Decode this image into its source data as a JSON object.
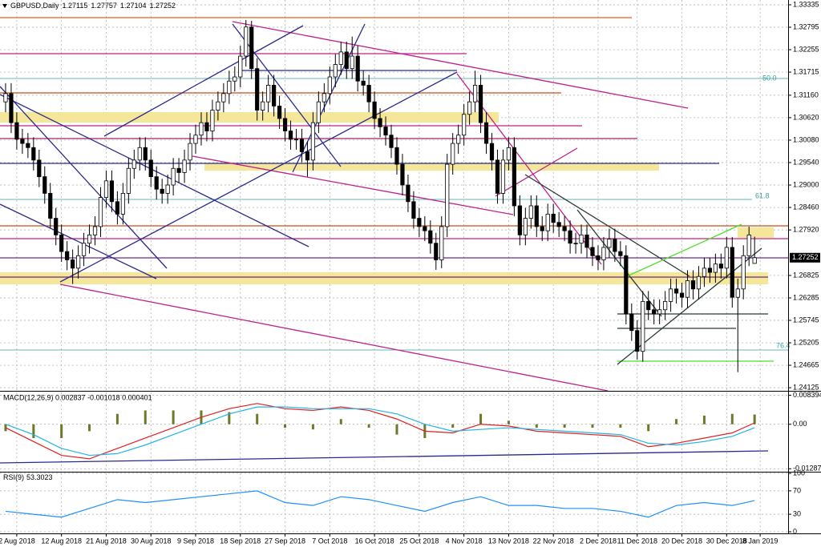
{
  "chart_data": [
    {
      "type": "candlestick",
      "title": "GBPUSD,Daily",
      "open": [
        1.31,
        1.312,
        1.305,
        1.301,
        1.3,
        1.299,
        1.296,
        1.292,
        1.288,
        1.282,
        1.278,
        1.274,
        1.272,
        1.27,
        1.273,
        1.276,
        1.278,
        1.28,
        1.287,
        1.291,
        1.286,
        1.283,
        1.288,
        1.294,
        1.296,
        1.299,
        1.296,
        1.292,
        1.289,
        1.288,
        1.29,
        1.294,
        1.293,
        1.296,
        1.3,
        1.302,
        1.305,
        1.303,
        1.308,
        1.31,
        1.312,
        1.315,
        1.316,
        1.321,
        1.328,
        1.318,
        1.308,
        1.31,
        1.314,
        1.309,
        1.306,
        1.303,
        1.301,
        1.301,
        1.298,
        1.296,
        1.305,
        1.31,
        1.312,
        1.316,
        1.319,
        1.322,
        1.318,
        1.321,
        1.315,
        1.314,
        1.31,
        1.306,
        1.304,
        1.302,
        1.299,
        1.295,
        1.29,
        1.286,
        1.282,
        1.28,
        1.279,
        1.276,
        1.272,
        1.28,
        1.295,
        1.3,
        1.302,
        1.307,
        1.31,
        1.314,
        1.305,
        1.3,
        1.296,
        1.288,
        1.296,
        1.299,
        1.285,
        1.278,
        1.282,
        1.285,
        1.28,
        1.279,
        1.283,
        1.281,
        1.28,
        1.279,
        1.276,
        1.276,
        1.278,
        1.275,
        1.273,
        1.272,
        1.275,
        1.277,
        1.274,
        1.273,
        1.259,
        1.255,
        1.25,
        1.262,
        1.26,
        1.259,
        1.26,
        1.262,
        1.265,
        1.264,
        1.263,
        1.267,
        1.265,
        1.268,
        1.27,
        1.269,
        1.271,
        1.27,
        1.275,
        1.263,
        1.265,
        1.273,
        1.27115
      ],
      "high": [
        1.3145,
        1.3145,
        1.3075,
        1.3035,
        1.3025,
        1.3015,
        1.2985,
        1.2945,
        1.2905,
        1.2845,
        1.2805,
        1.2765,
        1.2745,
        1.2755,
        1.2785,
        1.2805,
        1.2825,
        1.2895,
        1.2935,
        1.2935,
        1.2885,
        1.2905,
        1.2965,
        1.2985,
        1.3015,
        1.3015,
        1.2985,
        1.2945,
        1.2915,
        1.2925,
        1.2965,
        1.2965,
        1.2985,
        1.3025,
        1.3045,
        1.3075,
        1.3075,
        1.3105,
        1.3125,
        1.3145,
        1.3175,
        1.3185,
        1.3235,
        1.3297,
        1.3295,
        1.3205,
        1.3125,
        1.3165,
        1.3165,
        1.3115,
        1.3085,
        1.3055,
        1.3035,
        1.3035,
        1.3005,
        1.3075,
        1.3125,
        1.3145,
        1.3185,
        1.3215,
        1.3245,
        1.3245,
        1.3257,
        1.3235,
        1.3175,
        1.3165,
        1.3125,
        1.3085,
        1.3065,
        1.3045,
        1.3015,
        1.2975,
        1.2925,
        1.2885,
        1.2845,
        1.2825,
        1.2815,
        1.2785,
        1.2825,
        1.2975,
        1.3025,
        1.3045,
        1.3095,
        1.3125,
        1.3175,
        1.3165,
        1.3075,
        1.3025,
        1.2985,
        1.2985,
        1.3015,
        1.3015,
        1.2875,
        1.2845,
        1.2875,
        1.2875,
        1.2825,
        1.2855,
        1.2855,
        1.2835,
        1.2825,
        1.2815,
        1.2785,
        1.2805,
        1.2805,
        1.2775,
        1.2755,
        1.2775,
        1.2795,
        1.2795,
        1.2765,
        1.2755,
        1.2615,
        1.2575,
        1.2645,
        1.2645,
        1.2625,
        1.2625,
        1.2645,
        1.2675,
        1.2675,
        1.2665,
        1.2695,
        1.2695,
        1.2705,
        1.2725,
        1.2725,
        1.2735,
        1.2735,
        1.2775,
        1.2775,
        1.2675,
        1.2755,
        1.28,
        1.27757
      ],
      "low": [
        1.3075,
        1.3025,
        1.2985,
        1.2975,
        1.2965,
        1.2935,
        1.2895,
        1.2855,
        1.2795,
        1.2755,
        1.2715,
        1.2695,
        1.2662,
        1.2675,
        1.2705,
        1.2735,
        1.2755,
        1.2775,
        1.2845,
        1.2835,
        1.2805,
        1.2805,
        1.2855,
        1.2915,
        1.2935,
        1.2935,
        1.2895,
        1.2865,
        1.2855,
        1.2855,
        1.2875,
        1.2905,
        1.2905,
        1.2935,
        1.2975,
        1.2995,
        1.3005,
        1.3005,
        1.3055,
        1.3075,
        1.3095,
        1.3125,
        1.3135,
        1.3185,
        1.3155,
        1.3055,
        1.3055,
        1.3075,
        1.3065,
        1.3035,
        1.3005,
        1.2985,
        1.2985,
        1.2955,
        1.292,
        1.2935,
        1.3025,
        1.3075,
        1.3095,
        1.3135,
        1.3165,
        1.3155,
        1.3155,
        1.3125,
        1.3115,
        1.3075,
        1.3035,
        1.3015,
        1.2995,
        1.2965,
        1.2925,
        1.2875,
        1.2835,
        1.2795,
        1.2775,
        1.2765,
        1.2735,
        1.2696,
        1.27,
        1.2775,
        1.2925,
        1.2975,
        1.2995,
        1.3045,
        1.3075,
        1.3025,
        1.2975,
        1.2935,
        1.2855,
        1.2855,
        1.2935,
        1.2825,
        1.2755,
        1.2755,
        1.2795,
        1.2775,
        1.2765,
        1.2765,
        1.2785,
        1.2775,
        1.2765,
        1.2735,
        1.2735,
        1.2735,
        1.2725,
        1.2705,
        1.2695,
        1.2695,
        1.2725,
        1.2715,
        1.2705,
        1.2565,
        1.2525,
        1.248,
        1.2475,
        1.2575,
        1.2565,
        1.2565,
        1.2575,
        1.2595,
        1.2615,
        1.2605,
        1.2605,
        1.2625,
        1.2625,
        1.2655,
        1.2665,
        1.2665,
        1.2675,
        1.2675,
        1.2605,
        1.245,
        1.2625,
        1.2705,
        1.27104
      ],
      "close": [
        1.312,
        1.305,
        1.301,
        1.3,
        1.299,
        1.296,
        1.292,
        1.288,
        1.282,
        1.278,
        1.274,
        1.272,
        1.27,
        1.273,
        1.276,
        1.278,
        1.28,
        1.287,
        1.291,
        1.286,
        1.283,
        1.288,
        1.294,
        1.296,
        1.299,
        1.296,
        1.292,
        1.289,
        1.288,
        1.29,
        1.294,
        1.293,
        1.296,
        1.3,
        1.302,
        1.305,
        1.303,
        1.308,
        1.31,
        1.312,
        1.315,
        1.316,
        1.321,
        1.328,
        1.318,
        1.308,
        1.31,
        1.314,
        1.309,
        1.306,
        1.303,
        1.301,
        1.301,
        1.298,
        1.296,
        1.305,
        1.31,
        1.312,
        1.316,
        1.319,
        1.322,
        1.318,
        1.321,
        1.315,
        1.314,
        1.31,
        1.306,
        1.304,
        1.302,
        1.299,
        1.295,
        1.29,
        1.286,
        1.282,
        1.28,
        1.279,
        1.276,
        1.272,
        1.28,
        1.295,
        1.3,
        1.302,
        1.307,
        1.31,
        1.314,
        1.305,
        1.3,
        1.296,
        1.288,
        1.296,
        1.299,
        1.285,
        1.278,
        1.282,
        1.285,
        1.28,
        1.279,
        1.283,
        1.281,
        1.28,
        1.279,
        1.276,
        1.276,
        1.278,
        1.275,
        1.273,
        1.272,
        1.275,
        1.277,
        1.274,
        1.273,
        1.259,
        1.255,
        1.25,
        1.262,
        1.26,
        1.259,
        1.26,
        1.262,
        1.265,
        1.264,
        1.263,
        1.267,
        1.265,
        1.268,
        1.27,
        1.269,
        1.271,
        1.27,
        1.275,
        1.263,
        1.265,
        1.273,
        1.278,
        1.27252
      ],
      "up_color": "#ffffff",
      "down_color": "#000000",
      "xlim": [
        -1,
        140
      ],
      "xticks": [
        {
          "value": 2,
          "label": "2 Aug 2018"
        },
        {
          "value": 10,
          "label": "12 Aug 2018"
        },
        {
          "value": 18,
          "label": "21 Aug 2018"
        },
        {
          "value": 26,
          "label": "30 Aug 2018"
        },
        {
          "value": 34,
          "label": "9 Sep 2018"
        },
        {
          "value": 42,
          "label": "18 Sep 2018"
        },
        {
          "value": 50,
          "label": "27 Sep 2018"
        },
        {
          "value": 58,
          "label": "7 Oct 2018"
        },
        {
          "value": 66,
          "label": "16 Oct 2018"
        },
        {
          "value": 74,
          "label": "25 Oct 2018"
        },
        {
          "value": 82,
          "label": "4 Nov 2018"
        },
        {
          "value": 90,
          "label": "13 Nov 2018"
        },
        {
          "value": 98,
          "label": "22 Nov 2018"
        },
        {
          "value": 106,
          "label": "2 Dec 2018"
        },
        {
          "value": 113,
          "label": "11 Dec 2018"
        },
        {
          "value": 121,
          "label": "20 Dec 2018"
        },
        {
          "value": 129,
          "label": "30 Dec 2018"
        },
        {
          "value": 135,
          "label": "8 Jan 2019"
        }
      ],
      "ylim": [
        1.2405,
        1.3345
      ],
      "yticks": [
        1.33335,
        1.32795,
        1.32255,
        1.31715,
        {
          "value": 1.3116,
          "label": "1.31160"
        },
        {
          "value": 1.3062,
          "label": "1.30620"
        },
        {
          "value": 1.3008,
          "label": "1.30080"
        },
        {
          "value": 1.2954,
          "label": "1.29540"
        },
        {
          "value": 1.29,
          "label": "1.29000"
        },
        {
          "value": 1.2846,
          "label": "1.28460"
        },
        {
          "value": 1.2792,
          "label": "1.27920"
        },
        1.26825,
        1.26285,
        1.25745,
        1.25205,
        1.24665,
        1.24125
      ],
      "grid": true,
      "annotations": [
        "50.0",
        "61.8",
        "76.4"
      ]
    },
    {
      "type": "macd",
      "title": "MACD(12,26,9) 0.002837 -0.001018 0.000401",
      "x": [
        0,
        5,
        10,
        15,
        20,
        25,
        30,
        35,
        40,
        45,
        50,
        55,
        60,
        65,
        70,
        75,
        80,
        85,
        90,
        95,
        100,
        105,
        110,
        115,
        120,
        125,
        130,
        134
      ],
      "bars": [
        -0.002,
        -0.004,
        -0.004,
        -0.002,
        0.003,
        0.004,
        0.004,
        0.004,
        0.0035,
        0.003,
        -0.001,
        -0.0015,
        0.0015,
        -0.001,
        -0.003,
        -0.004,
        -0.001,
        0.003,
        0.001,
        -0.001,
        -0.001,
        -0.001,
        -0.001,
        -0.002,
        0.0015,
        0.0025,
        0.003,
        0.0028
      ],
      "bar_color": "#6b7a2a",
      "series": [
        {
          "color": "#e02020",
          "values": [
            -0.001,
            -0.005,
            -0.009,
            -0.01,
            -0.007,
            -0.004,
            -0.001,
            0.002,
            0.0045,
            0.006,
            0.0045,
            0.004,
            0.005,
            0.004,
            0.0015,
            -0.002,
            -0.0025,
            0.0,
            -0.0005,
            -0.002,
            -0.0025,
            -0.003,
            -0.0035,
            -0.0065,
            -0.0055,
            -0.004,
            -0.0025,
            0.0004
          ]
        },
        {
          "color": "#22b4e6",
          "values": [
            0.0,
            -0.003,
            -0.007,
            -0.009,
            -0.0085,
            -0.006,
            -0.003,
            0.0,
            0.003,
            0.005,
            0.005,
            0.0045,
            0.0045,
            0.0045,
            0.003,
            0.0,
            -0.002,
            -0.0015,
            -0.001,
            -0.0015,
            -0.002,
            -0.0025,
            -0.003,
            -0.0055,
            -0.006,
            -0.005,
            -0.0035,
            -0.001
          ]
        }
      ],
      "ylim": [
        -0.0135,
        0.0092
      ],
      "yticks": [
        0.008394,
        {
          "value": 0,
          "label": "0.00"
        },
        -0.012878
      ]
    },
    {
      "type": "rsi",
      "title": "RSI(9)",
      "x": [
        0,
        5,
        10,
        15,
        20,
        25,
        30,
        35,
        40,
        45,
        50,
        55,
        60,
        65,
        70,
        75,
        80,
        85,
        90,
        95,
        100,
        105,
        110,
        115,
        120,
        125,
        130,
        134
      ],
      "values": [
        35,
        30,
        25,
        40,
        55,
        50,
        55,
        60,
        65,
        70,
        50,
        45,
        60,
        55,
        45,
        35,
        50,
        60,
        45,
        45,
        40,
        40,
        35,
        25,
        45,
        50,
        45,
        53.3023
      ],
      "color": "#1e90ff",
      "ylim": [
        0,
        100
      ],
      "yticks": [
        100,
        70,
        30,
        0
      ]
    }
  ]
}
